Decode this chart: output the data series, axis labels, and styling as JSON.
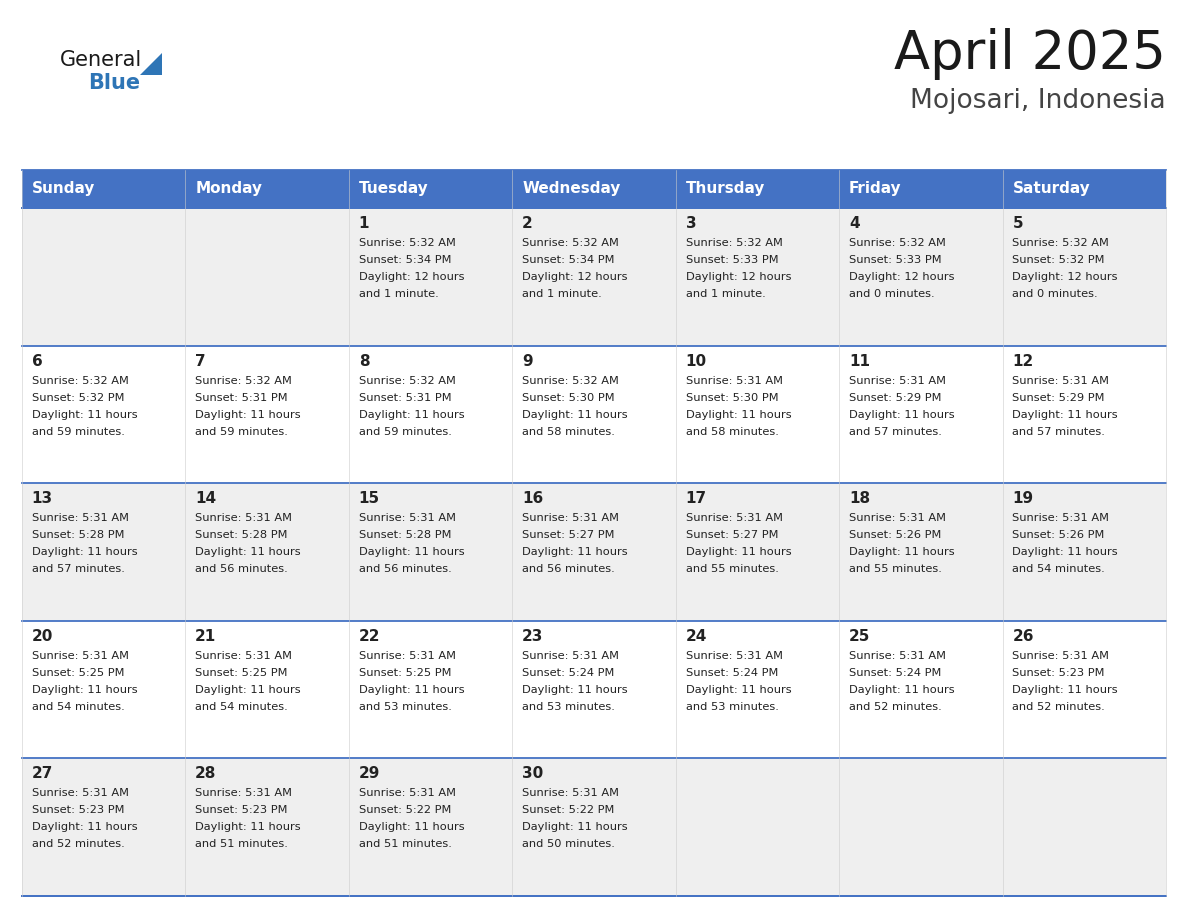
{
  "title": "April 2025",
  "subtitle": "Mojosari, Indonesia",
  "header_bg": "#4472C4",
  "header_text_color": "#FFFFFF",
  "days_of_week": [
    "Sunday",
    "Monday",
    "Tuesday",
    "Wednesday",
    "Thursday",
    "Friday",
    "Saturday"
  ],
  "row_bg_even": "#EFEFEF",
  "row_bg_odd": "#FFFFFF",
  "cell_text_color": "#222222",
  "grid_line_color": "#4472C4",
  "logo_general_color": "#1a1a1a",
  "logo_blue_color": "#2E75B6",
  "calendar_data": [
    [
      {
        "day": null,
        "sunrise": null,
        "sunset": null,
        "daylight_hours": null,
        "daylight_minutes": null
      },
      {
        "day": null,
        "sunrise": null,
        "sunset": null,
        "daylight_hours": null,
        "daylight_minutes": null
      },
      {
        "day": 1,
        "sunrise": "5:32 AM",
        "sunset": "5:34 PM",
        "daylight_hours": 12,
        "daylight_minutes": 1
      },
      {
        "day": 2,
        "sunrise": "5:32 AM",
        "sunset": "5:34 PM",
        "daylight_hours": 12,
        "daylight_minutes": 1
      },
      {
        "day": 3,
        "sunrise": "5:32 AM",
        "sunset": "5:33 PM",
        "daylight_hours": 12,
        "daylight_minutes": 1
      },
      {
        "day": 4,
        "sunrise": "5:32 AM",
        "sunset": "5:33 PM",
        "daylight_hours": 12,
        "daylight_minutes": 0
      },
      {
        "day": 5,
        "sunrise": "5:32 AM",
        "sunset": "5:32 PM",
        "daylight_hours": 12,
        "daylight_minutes": 0
      }
    ],
    [
      {
        "day": 6,
        "sunrise": "5:32 AM",
        "sunset": "5:32 PM",
        "daylight_hours": 11,
        "daylight_minutes": 59
      },
      {
        "day": 7,
        "sunrise": "5:32 AM",
        "sunset": "5:31 PM",
        "daylight_hours": 11,
        "daylight_minutes": 59
      },
      {
        "day": 8,
        "sunrise": "5:32 AM",
        "sunset": "5:31 PM",
        "daylight_hours": 11,
        "daylight_minutes": 59
      },
      {
        "day": 9,
        "sunrise": "5:32 AM",
        "sunset": "5:30 PM",
        "daylight_hours": 11,
        "daylight_minutes": 58
      },
      {
        "day": 10,
        "sunrise": "5:31 AM",
        "sunset": "5:30 PM",
        "daylight_hours": 11,
        "daylight_minutes": 58
      },
      {
        "day": 11,
        "sunrise": "5:31 AM",
        "sunset": "5:29 PM",
        "daylight_hours": 11,
        "daylight_minutes": 57
      },
      {
        "day": 12,
        "sunrise": "5:31 AM",
        "sunset": "5:29 PM",
        "daylight_hours": 11,
        "daylight_minutes": 57
      }
    ],
    [
      {
        "day": 13,
        "sunrise": "5:31 AM",
        "sunset": "5:28 PM",
        "daylight_hours": 11,
        "daylight_minutes": 57
      },
      {
        "day": 14,
        "sunrise": "5:31 AM",
        "sunset": "5:28 PM",
        "daylight_hours": 11,
        "daylight_minutes": 56
      },
      {
        "day": 15,
        "sunrise": "5:31 AM",
        "sunset": "5:28 PM",
        "daylight_hours": 11,
        "daylight_minutes": 56
      },
      {
        "day": 16,
        "sunrise": "5:31 AM",
        "sunset": "5:27 PM",
        "daylight_hours": 11,
        "daylight_minutes": 56
      },
      {
        "day": 17,
        "sunrise": "5:31 AM",
        "sunset": "5:27 PM",
        "daylight_hours": 11,
        "daylight_minutes": 55
      },
      {
        "day": 18,
        "sunrise": "5:31 AM",
        "sunset": "5:26 PM",
        "daylight_hours": 11,
        "daylight_minutes": 55
      },
      {
        "day": 19,
        "sunrise": "5:31 AM",
        "sunset": "5:26 PM",
        "daylight_hours": 11,
        "daylight_minutes": 54
      }
    ],
    [
      {
        "day": 20,
        "sunrise": "5:31 AM",
        "sunset": "5:25 PM",
        "daylight_hours": 11,
        "daylight_minutes": 54
      },
      {
        "day": 21,
        "sunrise": "5:31 AM",
        "sunset": "5:25 PM",
        "daylight_hours": 11,
        "daylight_minutes": 54
      },
      {
        "day": 22,
        "sunrise": "5:31 AM",
        "sunset": "5:25 PM",
        "daylight_hours": 11,
        "daylight_minutes": 53
      },
      {
        "day": 23,
        "sunrise": "5:31 AM",
        "sunset": "5:24 PM",
        "daylight_hours": 11,
        "daylight_minutes": 53
      },
      {
        "day": 24,
        "sunrise": "5:31 AM",
        "sunset": "5:24 PM",
        "daylight_hours": 11,
        "daylight_minutes": 53
      },
      {
        "day": 25,
        "sunrise": "5:31 AM",
        "sunset": "5:24 PM",
        "daylight_hours": 11,
        "daylight_minutes": 52
      },
      {
        "day": 26,
        "sunrise": "5:31 AM",
        "sunset": "5:23 PM",
        "daylight_hours": 11,
        "daylight_minutes": 52
      }
    ],
    [
      {
        "day": 27,
        "sunrise": "5:31 AM",
        "sunset": "5:23 PM",
        "daylight_hours": 11,
        "daylight_minutes": 52
      },
      {
        "day": 28,
        "sunrise": "5:31 AM",
        "sunset": "5:23 PM",
        "daylight_hours": 11,
        "daylight_minutes": 51
      },
      {
        "day": 29,
        "sunrise": "5:31 AM",
        "sunset": "5:22 PM",
        "daylight_hours": 11,
        "daylight_minutes": 51
      },
      {
        "day": 30,
        "sunrise": "5:31 AM",
        "sunset": "5:22 PM",
        "daylight_hours": 11,
        "daylight_minutes": 50
      },
      {
        "day": null,
        "sunrise": null,
        "sunset": null,
        "daylight_hours": null,
        "daylight_minutes": null
      },
      {
        "day": null,
        "sunrise": null,
        "sunset": null,
        "daylight_hours": null,
        "daylight_minutes": null
      },
      {
        "day": null,
        "sunrise": null,
        "sunset": null,
        "daylight_hours": null,
        "daylight_minutes": null
      }
    ]
  ]
}
